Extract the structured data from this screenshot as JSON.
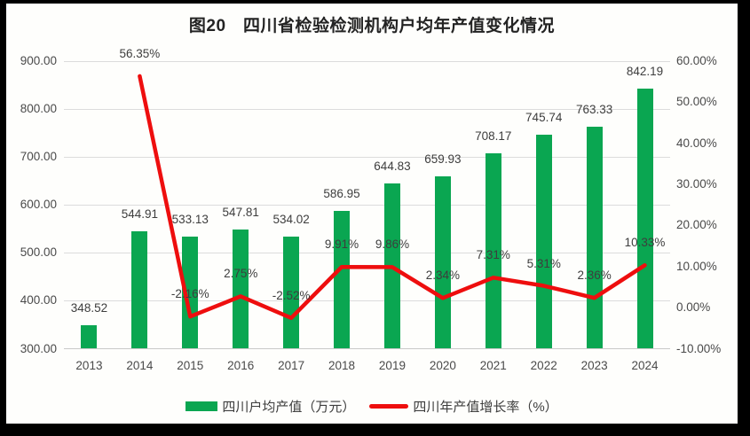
{
  "figure": {
    "frame_color": "#000000",
    "paper_color": "#fefefc",
    "title": "图20　四川省检验检测机构户均年产值变化情况"
  },
  "chart_data": {
    "type": "combo",
    "title": "图20　四川省检验检测机构户均年产值变化情况",
    "categories": [
      "2013",
      "2014",
      "2015",
      "2016",
      "2017",
      "2018",
      "2019",
      "2020",
      "2021",
      "2022",
      "2023",
      "2024"
    ],
    "series": [
      {
        "name": "四川户均产值（万元）",
        "type": "bar",
        "axis": "left",
        "color": "#0aa651",
        "values": [
          348.52,
          544.91,
          533.13,
          547.81,
          534.02,
          586.95,
          644.83,
          659.93,
          708.17,
          745.74,
          763.33,
          842.19
        ],
        "labels": [
          "348.52",
          "544.91",
          "533.13",
          "547.81",
          "534.02",
          "586.95",
          "644.83",
          "659.93",
          "708.17",
          "745.74",
          "763.33",
          "842.19"
        ]
      },
      {
        "name": "四川年产值增长率（%）",
        "type": "line",
        "axis": "right",
        "color": "#ee0e0e",
        "values": [
          null,
          56.35,
          -2.16,
          2.75,
          -2.52,
          9.91,
          9.86,
          2.34,
          7.31,
          5.31,
          2.36,
          10.33
        ],
        "labels": [
          null,
          "56.35%",
          "-2.16%",
          "2.75%",
          "-2.52%",
          "9.91%",
          "9.86%",
          "2.34%",
          "7.31%",
          "5.31%",
          "2.36%",
          "10.33%"
        ]
      }
    ],
    "left_axis": {
      "min": 300,
      "max": 900,
      "step": 100,
      "tick_labels": [
        "900.00",
        "800.00",
        "700.00",
        "600.00",
        "500.00",
        "400.00",
        "300.00"
      ]
    },
    "right_axis": {
      "min": -10,
      "max": 60,
      "step": 10,
      "tick_labels": [
        "60.00%",
        "50.00%",
        "40.00%",
        "30.00%",
        "20.00%",
        "10.00%",
        "0.00%",
        "-10.00%"
      ]
    },
    "grid": true,
    "gridline_color": "#dcdcdc",
    "legend_position": "bottom",
    "text_color": "#3d3d3d"
  }
}
